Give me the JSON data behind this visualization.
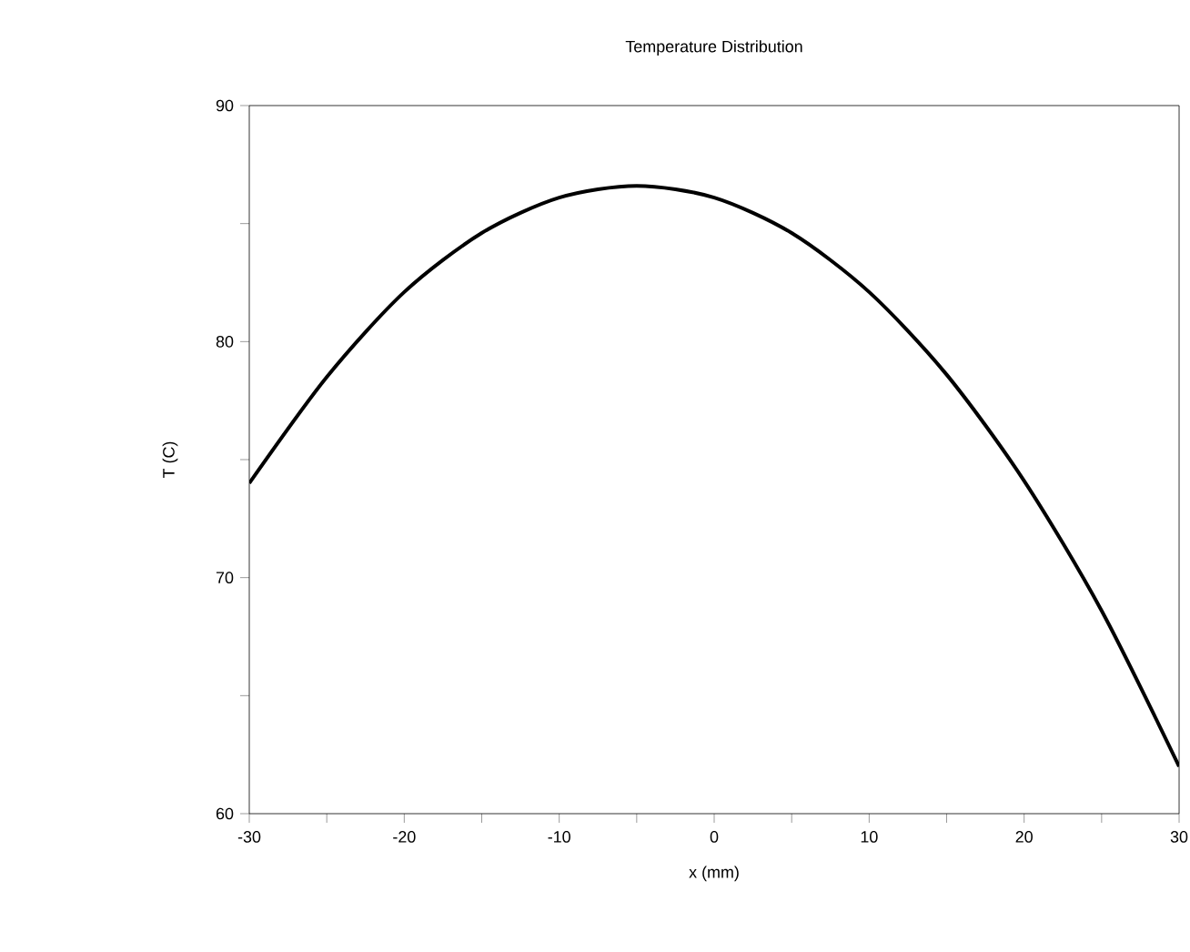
{
  "chart_data": {
    "type": "line",
    "title": "Temperature Distribution",
    "xlabel": "x (mm)",
    "ylabel": "T (C)",
    "x": [
      -30,
      -25,
      -20,
      -15,
      -10,
      -5,
      0,
      5,
      10,
      15,
      20,
      25,
      30
    ],
    "series": [
      {
        "color": "#000000",
        "values": [
          74.0,
          78.5,
          82.1,
          84.6,
          86.1,
          86.6,
          86.1,
          84.6,
          82.1,
          78.6,
          74.1,
          68.6,
          62.0
        ]
      }
    ],
    "xlim": [
      -30,
      30
    ],
    "ylim": [
      60,
      90
    ],
    "xticks": [
      -30,
      {
        "value": -25,
        "label": null
      },
      -20,
      {
        "value": -15,
        "label": null
      },
      -10,
      {
        "value": -5,
        "label": null
      },
      0,
      {
        "value": 5,
        "label": null
      },
      10,
      {
        "value": 15,
        "label": null
      },
      20,
      {
        "value": 25,
        "label": null
      },
      30
    ],
    "yticks": [
      60,
      {
        "value": 65,
        "label": null
      },
      70,
      {
        "value": 75,
        "label": null
      },
      80,
      {
        "value": 85,
        "label": null
      },
      90
    ],
    "marker": "none",
    "line_style": "solid"
  }
}
